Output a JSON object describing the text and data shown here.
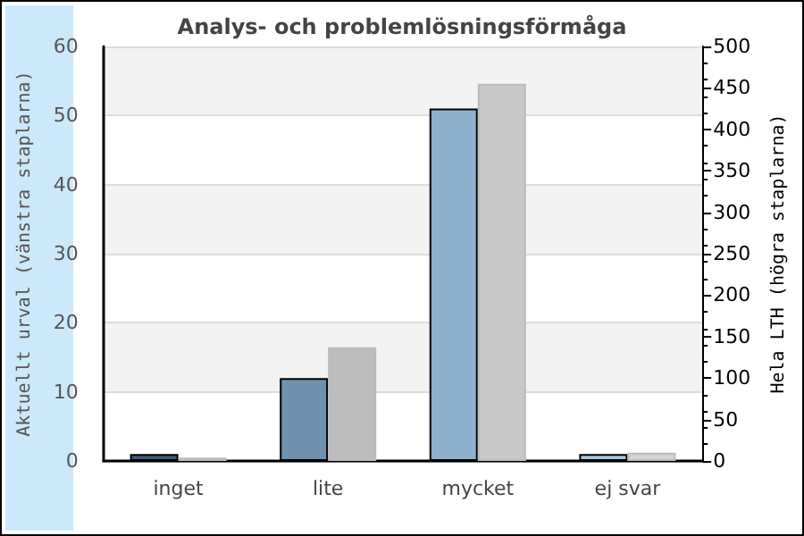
{
  "chart_data": {
    "type": "bar",
    "title": "Analys- och problemlösningsförmåga",
    "ylabel": "Aktuellt urval (vänstra staplarna)",
    "y2label": "Hela LTH (högra staplarna)",
    "categories": [
      "inget",
      "lite",
      "mycket",
      "ej svar"
    ],
    "series": [
      {
        "colors": [
          "#3f5a78",
          "#7090ab",
          "#8fb0cc",
          "#a9c8e2"
        ],
        "values": [
          1,
          12,
          51,
          1
        ]
      },
      {
        "colors": [
          "#b8b8b8",
          "#bdbdbd",
          "#c8c8c8",
          "#d4d4d4"
        ],
        "values": [
          4,
          137,
          455,
          10
        ],
        "axis": "y2"
      }
    ],
    "ylim": [
      0,
      60
    ],
    "yticks": [
      0,
      10,
      20,
      30,
      40,
      50,
      60
    ],
    "y2lim": [
      0,
      500
    ],
    "y2ticks": [
      0,
      50,
      100,
      150,
      200,
      250,
      300,
      350,
      400,
      450,
      500
    ],
    "grid": "y"
  }
}
